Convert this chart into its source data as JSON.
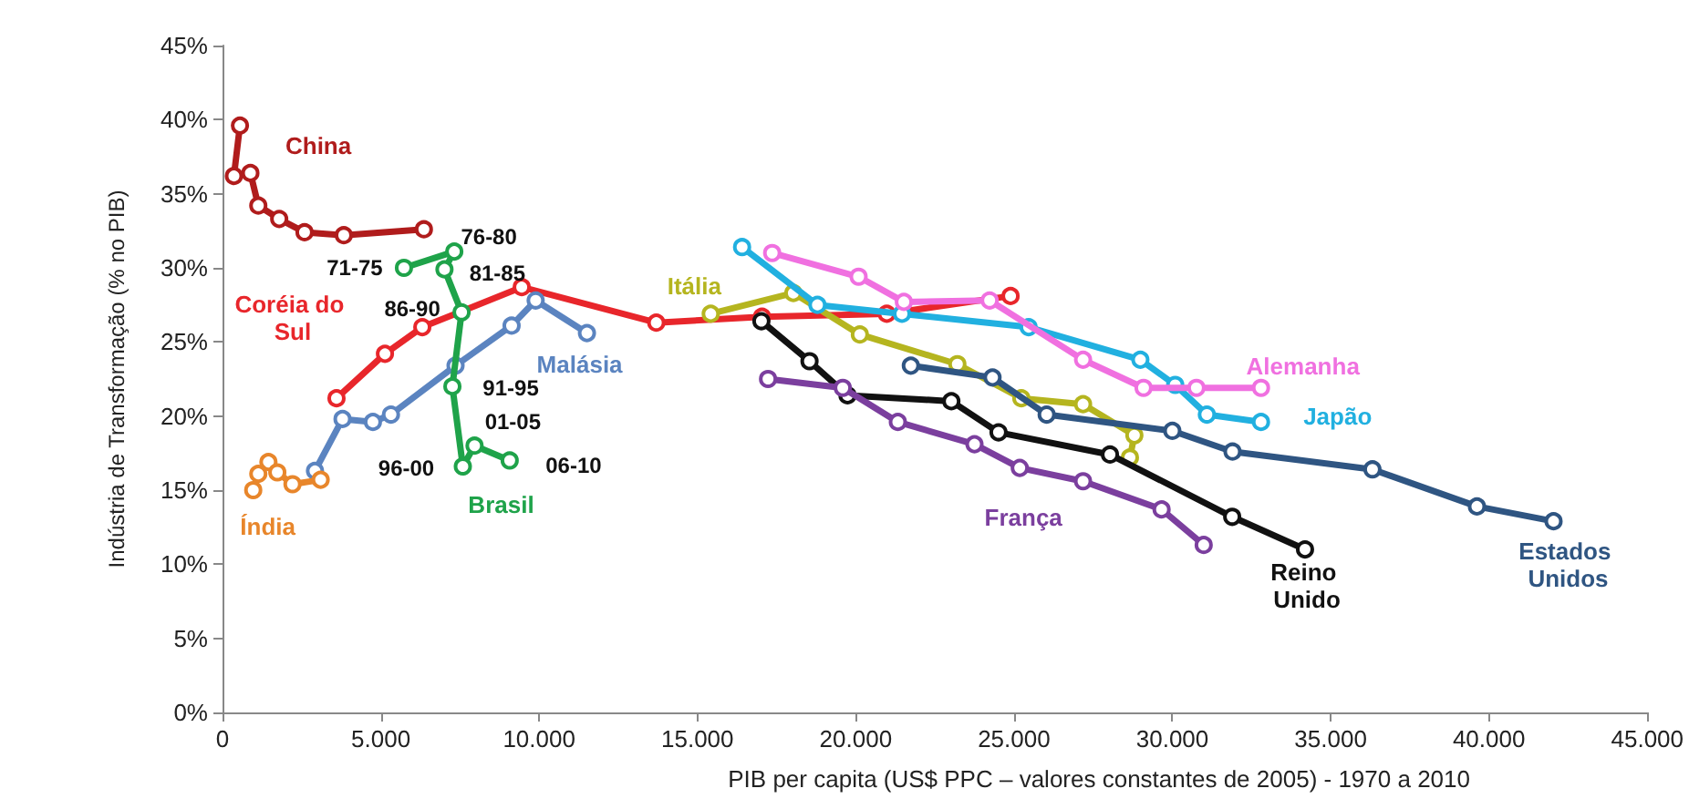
{
  "chart_data": {
    "type": "line",
    "xlabel": "PIB per capita (US$ PPC – valores constantes de 2005) - 1970 a 2010",
    "ylabel": "Indústria de Transformação (% no PIB)",
    "xlim": [
      0,
      45000
    ],
    "xticks": [
      0,
      {
        "value": 5000,
        "label": "5.000"
      },
      {
        "value": 10000,
        "label": "10.000"
      },
      {
        "value": 15000,
        "label": "15.000"
      },
      {
        "value": 20000,
        "label": "20.000"
      },
      {
        "value": 25000,
        "label": "25.000"
      },
      {
        "value": 30000,
        "label": "30.000"
      },
      {
        "value": 35000,
        "label": "35.000"
      },
      {
        "value": 40000,
        "label": "40.000"
      },
      {
        "value": 45000,
        "label": "45.000"
      }
    ],
    "ylim": [
      0,
      45
    ],
    "yticks": [
      {
        "value": 0,
        "label": "0%"
      },
      {
        "value": 5,
        "label": "5%"
      },
      {
        "value": 10,
        "label": "10%"
      },
      {
        "value": 15,
        "label": "15%"
      },
      {
        "value": 20,
        "label": "20%"
      },
      {
        "value": 25,
        "label": "25%"
      },
      {
        "value": 30,
        "label": "30%"
      },
      {
        "value": 35,
        "label": "35%"
      },
      {
        "value": 40,
        "label": "40%"
      },
      {
        "value": 45,
        "label": "45%"
      }
    ],
    "grid": false,
    "legend": false,
    "marker": "circle",
    "line_style": "solid",
    "series": [
      {
        "name": "China",
        "color": "#b01c1c",
        "x": [
          550,
          360,
          880,
          1130,
          1790,
          2590,
          3830,
          6360
        ],
        "values": [
          39.6,
          36.2,
          36.4,
          34.2,
          33.3,
          32.4,
          32.2,
          32.6
        ]
      },
      {
        "name": "Coréia do Sul",
        "color": "#e8262b",
        "x": [
          3600,
          5130,
          6310,
          9450,
          13700,
          17040,
          20980,
          24890
        ],
        "values": [
          21.2,
          24.2,
          26.0,
          28.7,
          26.3,
          26.7,
          26.9,
          28.1
        ]
      },
      {
        "name": "Malásia",
        "color": "#5b84c0",
        "x": [
          2920,
          3790,
          4750,
          5320,
          7360,
          9130,
          9890,
          11510
        ],
        "values": [
          16.3,
          19.8,
          19.6,
          20.1,
          23.4,
          26.1,
          27.8,
          25.6
        ]
      },
      {
        "name": "Índia",
        "color": "#e8862b",
        "x": [
          970,
          1130,
          1450,
          1730,
          2210,
          3100
        ],
        "values": [
          15.0,
          16.1,
          16.9,
          16.2,
          15.4,
          15.7
        ]
      },
      {
        "name": "Brasil",
        "color": "#1fa34a",
        "x": [
          5730,
          7320,
          7010,
          7550,
          7260,
          7590,
          7960,
          9070
        ],
        "values": [
          30.0,
          31.1,
          29.9,
          27.0,
          22.0,
          16.6,
          18.0,
          17.0
        ]
      },
      {
        "name": "Itália",
        "color": "#b5b51f",
        "x": [
          15420,
          18030,
          20130,
          23210,
          25230,
          27180,
          28800,
          28660
        ],
        "values": [
          26.9,
          28.3,
          25.5,
          23.5,
          21.2,
          20.8,
          18.7,
          17.2
        ]
      },
      {
        "name": "Japão",
        "color": "#21b0e0",
        "x": [
          16410,
          18790,
          21460,
          25460,
          28990,
          30090,
          31090,
          32800
        ],
        "values": [
          31.4,
          27.5,
          26.9,
          26.0,
          23.8,
          22.1,
          20.1,
          19.6
        ]
      },
      {
        "name": "Alemanha",
        "color": "#f070e0",
        "x": [
          17360,
          20090,
          21520,
          24230,
          27180,
          29090,
          30760,
          32800
        ],
        "values": [
          31.0,
          29.4,
          27.7,
          27.8,
          23.8,
          21.9,
          21.9,
          21.9
        ]
      },
      {
        "name": "Estados Unidos",
        "color": "#2f5582",
        "x": [
          21740,
          24320,
          26030,
          30000,
          31900,
          36320,
          39620,
          42040
        ],
        "values": [
          23.4,
          22.6,
          20.1,
          19.0,
          17.6,
          16.4,
          13.9,
          12.9
        ]
      },
      {
        "name": "Reino Unido",
        "color": "#111111",
        "x": [
          17020,
          18540,
          19740,
          23020,
          24510,
          28030,
          31890,
          34190
        ],
        "values": [
          26.4,
          23.7,
          21.4,
          21.0,
          18.9,
          17.4,
          13.2,
          11.0
        ]
      },
      {
        "name": "França",
        "color": "#7b3f9e",
        "x": [
          17230,
          19590,
          21330,
          23750,
          25180,
          27180,
          29660,
          30990
        ],
        "values": [
          22.5,
          21.9,
          19.6,
          18.1,
          16.5,
          15.6,
          13.7,
          11.3
        ]
      }
    ],
    "annotations": [
      {
        "text": "71-75",
        "x": 5730,
        "y": 30.0
      },
      {
        "text": "76-80",
        "x": 7320,
        "y": 31.1
      },
      {
        "text": "81-85",
        "x": 7010,
        "y": 29.9
      },
      {
        "text": "86-90",
        "x": 7550,
        "y": 27.0
      },
      {
        "text": "91-95",
        "x": 7260,
        "y": 22.0
      },
      {
        "text": "96-00",
        "x": 7590,
        "y": 16.6
      },
      {
        "text": "01-05",
        "x": 7960,
        "y": 18.0
      },
      {
        "text": "06-10",
        "x": 9070,
        "y": 17.0
      }
    ]
  }
}
